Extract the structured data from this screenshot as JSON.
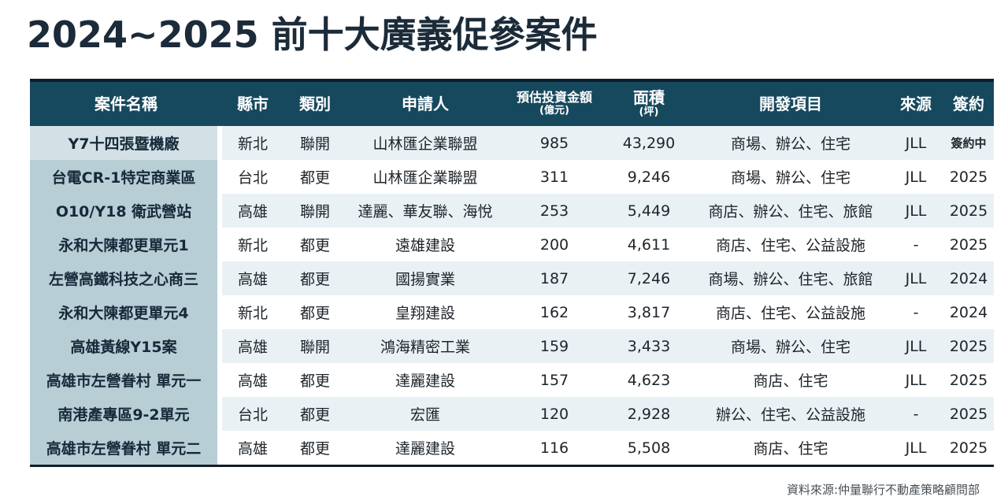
{
  "title": "2024~2025 前十大廣義促參案件",
  "footer": {
    "source_note": "資料來源:仲量聯行不動產策略顧問部"
  },
  "colors": {
    "header_bg": "#17495e",
    "header_top_strip": "#0c1f2b",
    "name_column_bg": "#b7ced5",
    "name_column_first_row_bg": "#d3e1e6",
    "stripe_odd": "#e9f1f4",
    "stripe_even": "#ffffff",
    "title_text": "#1c2b39",
    "body_text": "#1e242a",
    "table_bottom_border": "#141d26"
  },
  "chart_data": {
    "type": "table",
    "title": "2024~2025 前十大廣義促參案件",
    "columns": [
      {
        "key": "name",
        "label": "案件名稱",
        "sub": ""
      },
      {
        "key": "city",
        "label": "縣市",
        "sub": ""
      },
      {
        "key": "category",
        "label": "類別",
        "sub": ""
      },
      {
        "key": "applicant",
        "label": "申請人",
        "sub": ""
      },
      {
        "key": "investment",
        "label": "預估投資金額",
        "sub": "(億元)"
      },
      {
        "key": "area",
        "label": "面積",
        "sub": "(坪)"
      },
      {
        "key": "development",
        "label": "開發項目",
        "sub": ""
      },
      {
        "key": "source",
        "label": "來源",
        "sub": ""
      },
      {
        "key": "signing",
        "label": "簽約",
        "sub": ""
      }
    ],
    "rows": [
      [
        "Y7十四張暨機廠",
        "新北",
        "聯開",
        "山林匯企業聯盟",
        "985",
        "43,290",
        "商場、辦公、住宅",
        "JLL",
        "簽約中"
      ],
      [
        "台電CR-1特定商業區",
        "台北",
        "都更",
        "山林匯企業聯盟",
        "311",
        "9,246",
        "商場、辦公、住宅",
        "JLL",
        "2025"
      ],
      [
        "O10/Y18 衛武營站",
        "高雄",
        "聯開",
        "達麗、華友聯、海悅",
        "253",
        "5,449",
        "商店、辦公、住宅、旅館",
        "JLL",
        "2025"
      ],
      [
        "永和大陳都更單元1",
        "新北",
        "都更",
        "遠雄建設",
        "200",
        "4,611",
        "商店、住宅、公益設施",
        "-",
        "2025"
      ],
      [
        "左營高鐵科技之心商三",
        "高雄",
        "都更",
        "國揚實業",
        "187",
        "7,246",
        "商場、辦公、住宅、旅館",
        "JLL",
        "2024"
      ],
      [
        "永和大陳都更單元4",
        "新北",
        "都更",
        "皇翔建設",
        "162",
        "3,817",
        "商店、住宅、公益設施",
        "-",
        "2024"
      ],
      [
        "高雄黃線Y15案",
        "高雄",
        "聯開",
        "鴻海精密工業",
        "159",
        "3,433",
        "商場、辦公、住宅",
        "JLL",
        "2025"
      ],
      [
        "高雄市左營眷村 單元一",
        "高雄",
        "都更",
        "達麗建設",
        "157",
        "4,623",
        "商店、住宅",
        "JLL",
        "2025"
      ],
      [
        "南港產專區9-2單元",
        "台北",
        "都更",
        "宏匯",
        "120",
        "2,928",
        "辦公、住宅、公益設施",
        "-",
        "2025"
      ],
      [
        "高雄市左營眷村 單元二",
        "高雄",
        "都更",
        "達麗建設",
        "116",
        "5,508",
        "商店、住宅",
        "JLL",
        "2025"
      ]
    ]
  }
}
